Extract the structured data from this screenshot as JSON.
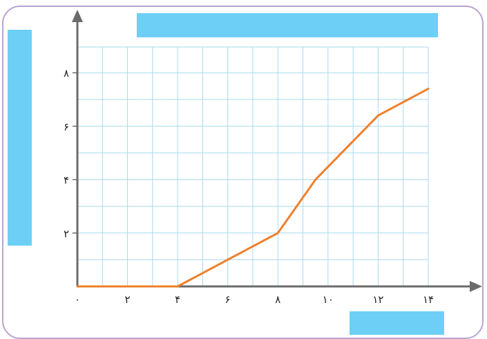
{
  "colors": {
    "frame": "#b9a3d0",
    "grid": "#a8daf2",
    "axis": "#6b6b6b",
    "line": "#f07f2a",
    "label_boxes": "#6ecff6"
  },
  "chart_data": {
    "type": "line",
    "title": "",
    "xlabel": "",
    "ylabel": "",
    "xlim": [
      0,
      14
    ],
    "ylim": [
      0,
      9
    ],
    "grid": true,
    "x_ticks": [
      0,
      2,
      4,
      6,
      8,
      10,
      12,
      14
    ],
    "x_tick_labels": [
      "۰",
      "۲",
      "۴",
      "۶",
      "۸",
      "۱۰",
      "۱۲",
      "۱۴"
    ],
    "y_ticks": [
      2,
      4,
      6,
      8
    ],
    "y_tick_labels": [
      "۲",
      "۴",
      "۶",
      "۸"
    ],
    "series": [
      {
        "x": [
          0,
          4,
          8,
          9.5,
          12,
          14
        ],
        "y": [
          0,
          0,
          2,
          4,
          6.4,
          7.4
        ]
      }
    ]
  }
}
